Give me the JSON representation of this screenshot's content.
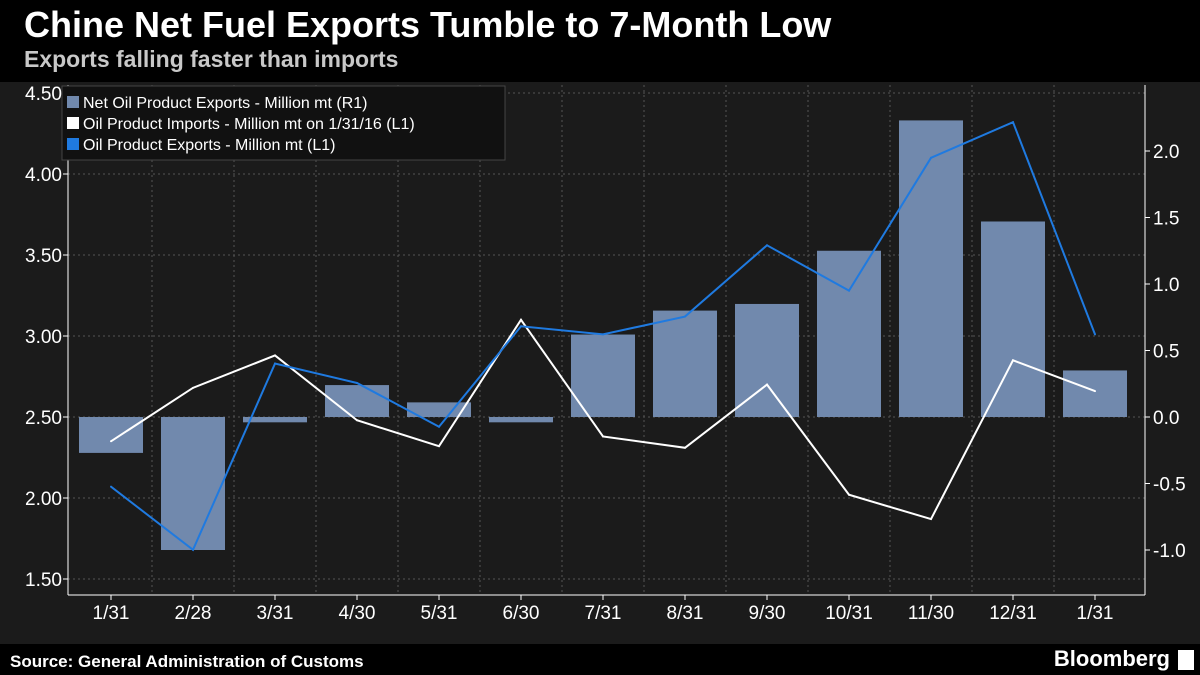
{
  "header": {
    "title": "Chine Net Fuel Exports Tumble to 7-Month Low",
    "subtitle": "Exports falling faster than imports"
  },
  "footer": {
    "source": "Source: General Administration of Customs",
    "logo": "Bloomberg"
  },
  "chart_data": {
    "type": "bar+line",
    "categories": [
      "1/31",
      "2/28",
      "3/31",
      "4/30",
      "5/31",
      "6/30",
      "7/31",
      "8/31",
      "9/30",
      "10/31",
      "11/30",
      "12/31",
      "1/31"
    ],
    "left_axis": {
      "ylim": [
        1.4,
        4.55
      ],
      "ticks": [
        "1.50",
        "2.00",
        "2.50",
        "3.00",
        "3.50",
        "4.00",
        "4.50"
      ]
    },
    "right_axis": {
      "ylim": [
        -1.2,
        2.5
      ],
      "ticks": [
        "-1.0",
        "-0.5",
        "0.0",
        "0.5",
        "1.0",
        "1.5",
        "2.0"
      ]
    },
    "legend_position": "top-left",
    "series": [
      {
        "name": "Net Oil Product Exports - Million mt (R1)",
        "type": "bar",
        "axis": "right",
        "color": "#7189ad",
        "values": [
          -0.27,
          -1.0,
          -0.04,
          0.24,
          0.11,
          -0.04,
          0.62,
          0.8,
          0.85,
          1.25,
          2.23,
          1.47,
          0.35
        ]
      },
      {
        "name": "Oil Product Imports -  Million mt on 1/31/16 (L1)",
        "type": "line",
        "axis": "left",
        "color": "#ffffff",
        "values": [
          2.35,
          2.68,
          2.88,
          2.48,
          2.32,
          3.1,
          2.38,
          2.31,
          2.7,
          2.02,
          1.87,
          2.85,
          2.66
        ]
      },
      {
        "name": "Oil Product Exports - Million mt (L1)",
        "type": "line",
        "axis": "left",
        "color": "#1f7ae0",
        "values": [
          2.07,
          1.68,
          2.83,
          2.71,
          2.44,
          3.06,
          3.01,
          3.12,
          3.56,
          3.28,
          4.1,
          4.32,
          3.01
        ]
      }
    ]
  }
}
